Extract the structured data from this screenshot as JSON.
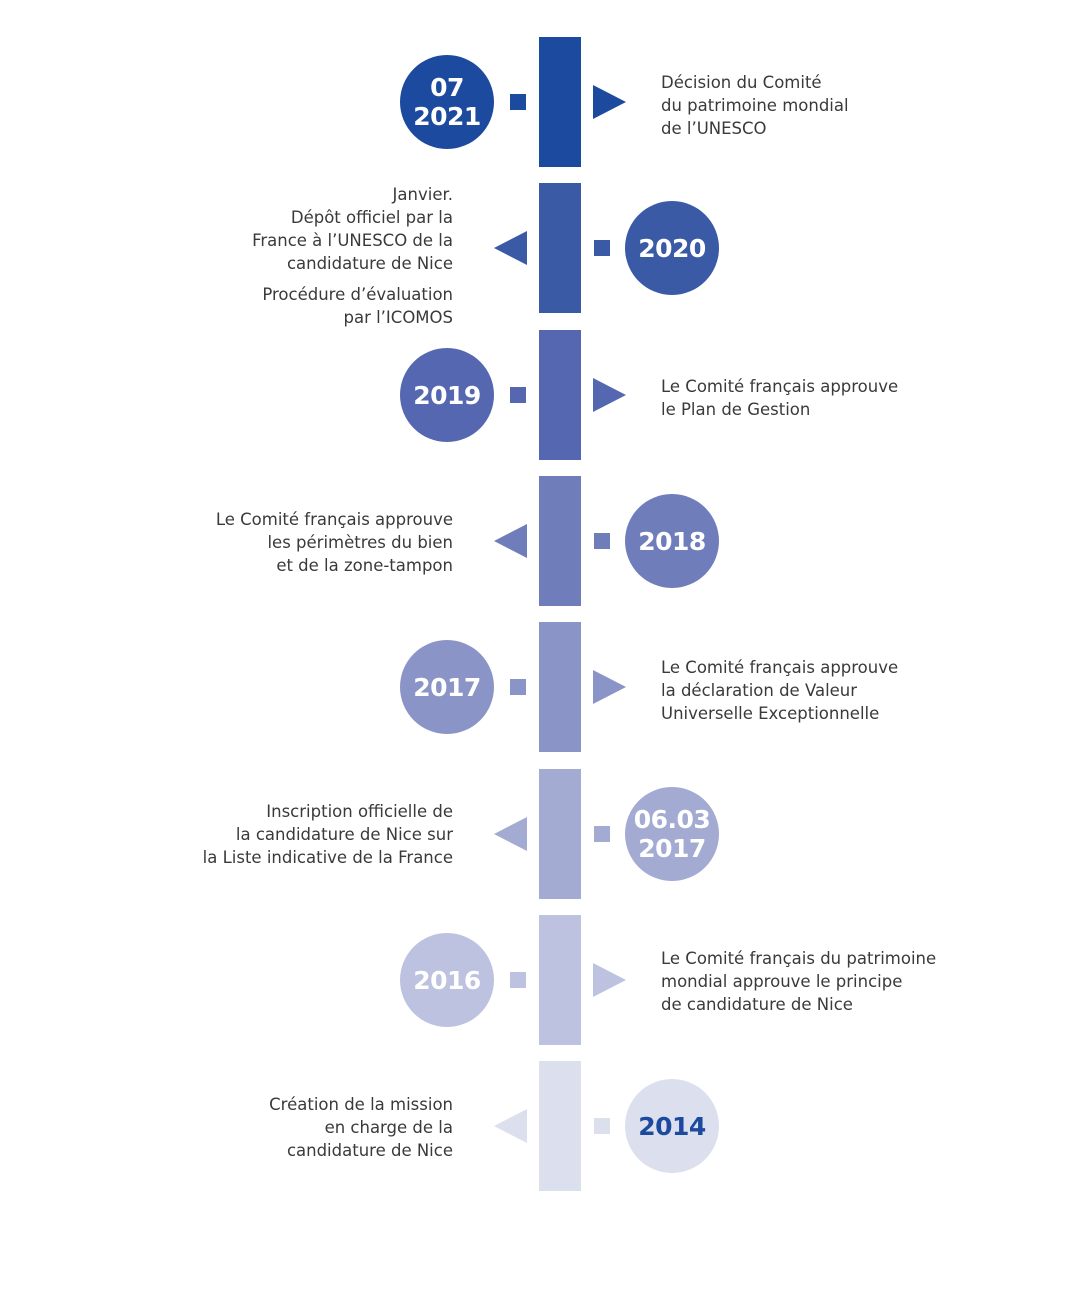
{
  "timeline": {
    "entries": [
      {
        "date_lines": [
          "07",
          "2021"
        ],
        "side": "right",
        "bar_color": "#1c4a9e",
        "circle_color": "#1c4a9e",
        "date_color": "#ffffff",
        "lines": [
          "Décision du Comité",
          "du patrimoine mondial",
          "de l’UNESCO"
        ],
        "lines2": []
      },
      {
        "date_lines": [
          "2020"
        ],
        "side": "left",
        "bar_color": "#3a5aa5",
        "circle_color": "#3a5aa5",
        "date_color": "#ffffff",
        "lines": [
          "Janvier.",
          "Dépôt officiel par la",
          "France à l’UNESCO de la",
          "candidature de Nice"
        ],
        "lines2": [
          "Procédure d’évaluation",
          "par l’ICOMOS"
        ]
      },
      {
        "date_lines": [
          "2019"
        ],
        "side": "right",
        "bar_color": "#5567b0",
        "circle_color": "#5567b0",
        "date_color": "#ffffff",
        "lines": [
          "Le Comité français approuve",
          "le Plan de Gestion"
        ],
        "lines2": []
      },
      {
        "date_lines": [
          "2018"
        ],
        "side": "left",
        "bar_color": "#6f7dba",
        "circle_color": "#6f7dba",
        "date_color": "#ffffff",
        "lines": [
          "Le Comité français approuve",
          "les périmètres du bien",
          "et de la zone-tampon"
        ],
        "lines2": []
      },
      {
        "date_lines": [
          "2017"
        ],
        "side": "right",
        "bar_color": "#8a94c7",
        "circle_color": "#8a94c7",
        "date_color": "#ffffff",
        "lines": [
          "Le Comité français approuve",
          "la déclaration de Valeur",
          "Universelle Exceptionnelle"
        ],
        "lines2": []
      },
      {
        "date_lines": [
          "06.03",
          "2017"
        ],
        "side": "left",
        "bar_color": "#a3abd3",
        "circle_color": "#a3abd3",
        "date_color": "#ffffff",
        "lines": [
          "Inscription officielle de",
          "la candidature de Nice sur",
          "la Liste indicative de la France"
        ],
        "lines2": []
      },
      {
        "date_lines": [
          "2016"
        ],
        "side": "right",
        "bar_color": "#bcc2e0",
        "circle_color": "#bcc2e0",
        "date_color": "#ffffff",
        "lines": [
          "Le Comité français du patrimoine",
          "mondial approuve le principe",
          "de candidature de Nice"
        ],
        "lines2": []
      },
      {
        "date_lines": [
          "2014"
        ],
        "side": "left",
        "bar_color": "#dcdfee",
        "circle_color": "#dcdfee",
        "date_color": "#1c4a9e",
        "lines": [
          "Création de la mission",
          "en charge de la",
          "candidature de Nice"
        ],
        "lines2": []
      }
    ]
  }
}
